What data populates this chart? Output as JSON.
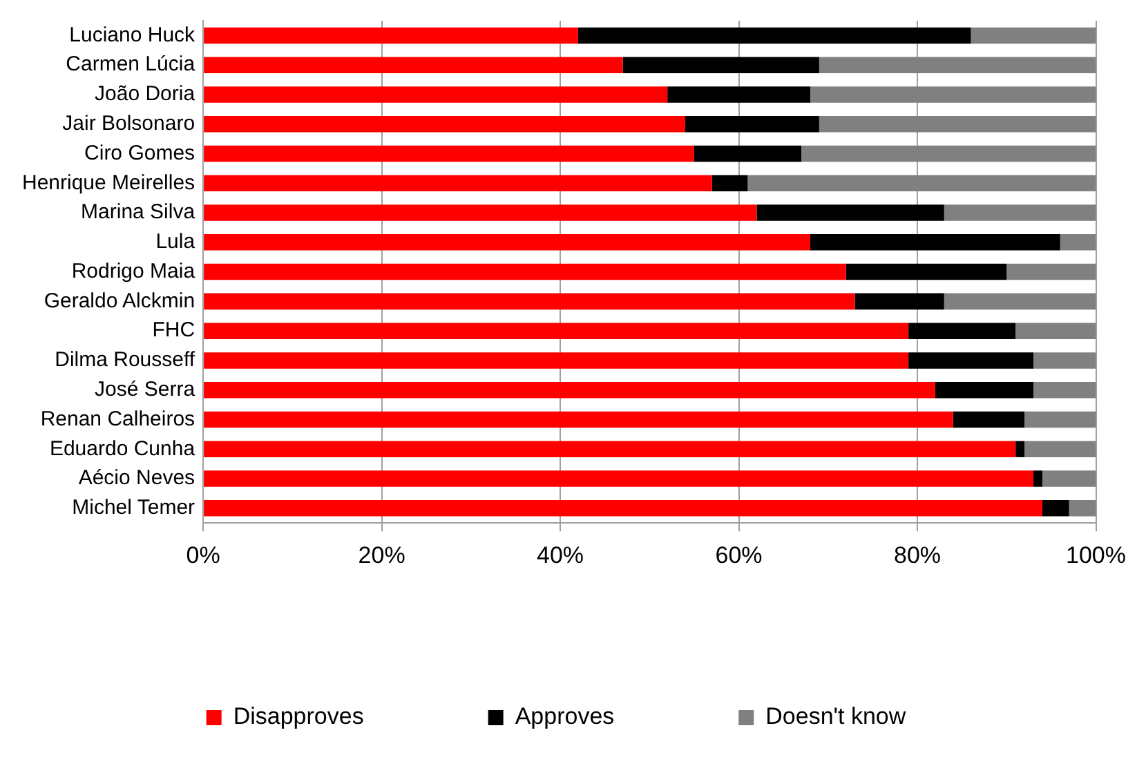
{
  "chart_data": {
    "type": "bar",
    "orientation": "horizontal",
    "stacked": true,
    "categories": [
      "Luciano Huck",
      "Carmen Lúcia",
      "João Doria",
      "Jair Bolsonaro",
      "Ciro Gomes",
      "Henrique Meirelles",
      "Marina Silva",
      "Lula",
      "Rodrigo Maia",
      "Geraldo Alckmin",
      "FHC",
      "Dilma Rousseff",
      "José Serra",
      "Renan Calheiros",
      "Eduardo Cunha",
      "Aécio Neves",
      "Michel Temer"
    ],
    "series": [
      {
        "name": "Disapproves",
        "color": "#ff0000",
        "values": [
          42,
          47,
          52,
          54,
          55,
          57,
          62,
          68,
          72,
          73,
          79,
          79,
          82,
          84,
          91,
          93,
          94
        ]
      },
      {
        "name": "Approves",
        "color": "#000000",
        "values": [
          44,
          22,
          16,
          15,
          12,
          4,
          21,
          28,
          18,
          10,
          12,
          14,
          11,
          8,
          1,
          1,
          3
        ]
      },
      {
        "name": "Doesn't know",
        "color": "#808080",
        "values": [
          14,
          31,
          32,
          31,
          33,
          39,
          17,
          4,
          10,
          17,
          9,
          7,
          7,
          8,
          8,
          6,
          3
        ]
      }
    ],
    "xlim": [
      0,
      100
    ],
    "xticks": [
      {
        "value": 0,
        "label": "0%"
      },
      {
        "value": 20,
        "label": "20%"
      },
      {
        "value": 40,
        "label": "40%"
      },
      {
        "value": 60,
        "label": "60%"
      },
      {
        "value": 80,
        "label": "80%"
      },
      {
        "value": 100,
        "label": "100%"
      }
    ],
    "grid": "x",
    "legend": "bottom"
  }
}
